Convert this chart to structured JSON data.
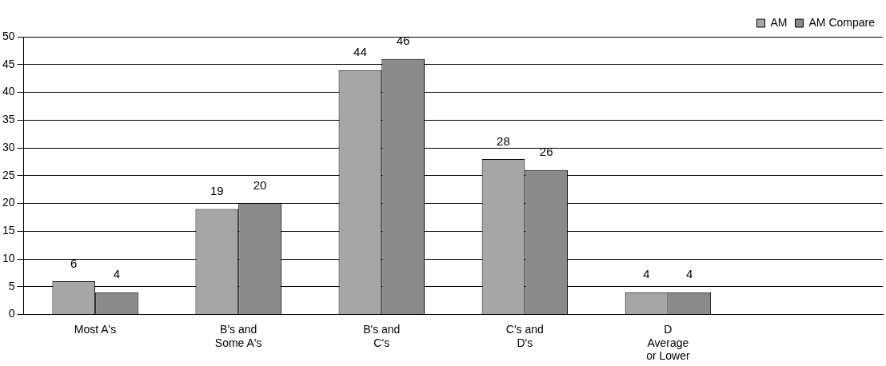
{
  "chart_data": {
    "type": "bar",
    "categories": [
      "Most A's",
      "B's and Some A's",
      "B's and C's",
      "C's and D's",
      "D Average or Lower",
      null
    ],
    "series": [
      {
        "name": "AM",
        "color": "#a6a6a6",
        "values": [
          6,
          19,
          44,
          28,
          4,
          null
        ]
      },
      {
        "name": "AM Compare",
        "color": "#8a8a8a",
        "values": [
          4,
          20,
          46,
          26,
          4,
          null
        ]
      }
    ],
    "ylim": [
      0,
      50
    ],
    "yticks": [
      0,
      5,
      10,
      15,
      20,
      25,
      30,
      35,
      40,
      45,
      50
    ],
    "grid": "y",
    "legend": "top right",
    "data_labels": true
  }
}
